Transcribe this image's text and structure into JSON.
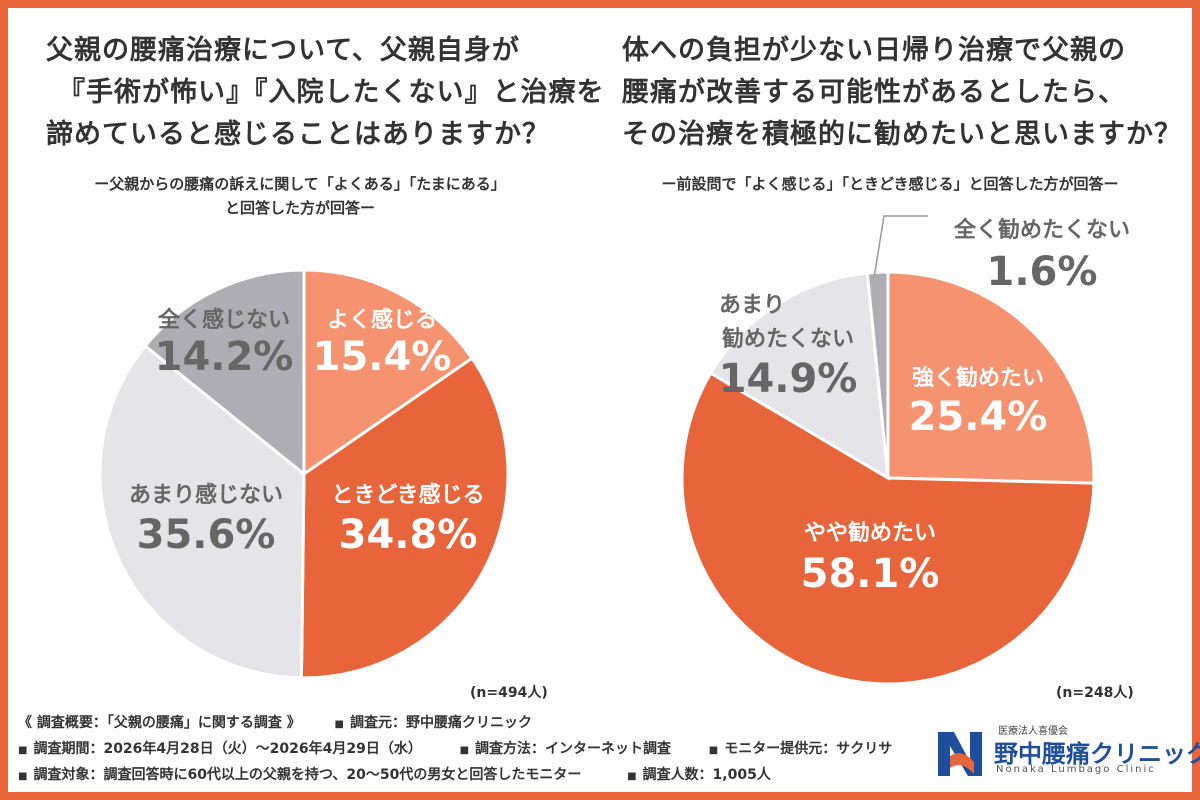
{
  "colors": {
    "border": "#e8643a",
    "light_orange": "#f59370",
    "dark_orange": "#e8643a",
    "light_gray": "#e5e4e9",
    "mid_gray": "#aeadb4",
    "logo_blue": "#1f4f9c",
    "logo_orange": "#e8643a"
  },
  "q1": {
    "title_lines": [
      "父親の腰痛治療について、父親自身が",
      "『手術が怖い』『入院したくない』と治療を",
      "諦めていると感じることはありますか？"
    ],
    "subtitle_lines": [
      "ー父親からの腰痛の訴えに関して「よくある」「たまにある」",
      "と回答した方が回答ー"
    ],
    "n_label": "(n=494人)"
  },
  "q2": {
    "title_lines": [
      "体への負担が少ない日帰り治療で父親の",
      "腰痛が改善する可能性があるとしたら、",
      "その治療を積極的に勧めたいと思いますか？"
    ],
    "subtitle_lines": [
      "ー前設問で「よく感じる」「ときどき感じる」と回答した方が回答ー"
    ],
    "n_label": "(n=248人)"
  },
  "chart_data": [
    {
      "type": "pie",
      "title": "父親の腰痛治療について、父親自身が『手術が怖い』『入院したくない』と治療を諦めていると感じることはありますか？",
      "categories": [
        "よく感じる",
        "ときどき感じる",
        "あまり感じない",
        "全く感じない"
      ],
      "values": [
        15.4,
        34.8,
        35.6,
        14.2
      ],
      "value_labels": [
        "15.4%",
        "34.8%",
        "35.6%",
        "14.2%"
      ],
      "colors": [
        "#f59370",
        "#e8643a",
        "#e5e4e9",
        "#aeadb4"
      ]
    },
    {
      "type": "pie",
      "title": "体への負担が少ない日帰り治療で父親の腰痛が改善する可能性があるとしたら、その治療を積極的に勧めたいと思いますか？",
      "categories": [
        "強く勧めたい",
        "やや勧めたい",
        "あまり勧めたくない",
        "全く勧めたくない"
      ],
      "values": [
        25.4,
        58.1,
        14.9,
        1.6
      ],
      "value_labels": [
        "25.4%",
        "58.1%",
        "14.9%",
        "1.6%"
      ],
      "colors": [
        "#f59370",
        "#e8643a",
        "#e5e4e9",
        "#aeadb4"
      ]
    }
  ],
  "footer": {
    "rows": [
      [
        "《 調査概要：「父親の腰痛」に関する調査 》",
        "調査元：野中腰痛クリニック"
      ],
      [
        "調査期間：2026年4月28日（火）〜2026年4月29日（水）",
        "調査方法：インターネット調査",
        "モニター提供元：サクリサ"
      ],
      [
        "調査対象：調査回答時に60代以上の父親を持つ、20〜50代の男女と回答したモニター",
        "調査人数：1,005人"
      ]
    ]
  },
  "logo": {
    "org": "医療法人喜優会",
    "name": "野中腰痛クリニック",
    "name_en": "Nonaka Lumbago Clinic"
  }
}
